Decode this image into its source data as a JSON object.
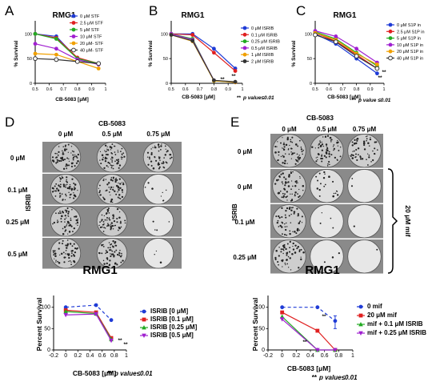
{
  "panels": [
    {
      "letter": "A"
    },
    {
      "letter": "B"
    },
    {
      "letter": "C"
    },
    {
      "letter": "D"
    },
    {
      "letter": "E"
    }
  ],
  "pvalue_note": "p value≤0.01",
  "pvalue_note_c": "p value ≤0.01",
  "pvalue_stars": "**",
  "chart_data": [
    {
      "id": "A",
      "type": "line",
      "title": "RMG1",
      "xlabel": "CB-5083 [μM]",
      "ylabel": "% Survival",
      "xlim": [
        0.5,
        1.0
      ],
      "ylim": [
        0,
        120
      ],
      "xticks": [
        0.5,
        0.6,
        0.7,
        0.8,
        0.9,
        1.0
      ],
      "yticks": [
        0,
        50,
        100
      ],
      "x": [
        0.5,
        0.65,
        0.8,
        0.95
      ],
      "series": [
        {
          "name": "0 μM STF",
          "color": "#1f3bd6",
          "marker": "circle",
          "values": [
            100,
            95,
            50,
            40
          ]
        },
        {
          "name": "2.5 μM STF",
          "color": "#e02020",
          "marker": "circle",
          "values": [
            100,
            92,
            52,
            40
          ]
        },
        {
          "name": "5 μM STF",
          "color": "#22aa22",
          "marker": "circle",
          "values": [
            100,
            90,
            50,
            40
          ]
        },
        {
          "name": "10 μM STF",
          "color": "#a020d0",
          "marker": "circle",
          "values": [
            80,
            70,
            48,
            38
          ]
        },
        {
          "name": "20 μM- STF",
          "color": "#f0a000",
          "marker": "circle",
          "values": [
            60,
            58,
            44,
            30
          ]
        },
        {
          "name": "40 μM- STF",
          "color": "#333333",
          "marker": "open-circle",
          "values": [
            50,
            48,
            44,
            40
          ]
        }
      ],
      "annotations": []
    },
    {
      "id": "B",
      "type": "line",
      "title": "RMG1",
      "xlabel": "CB-5083 [μM]",
      "ylabel": "% Survival",
      "xlim": [
        0.5,
        1.0
      ],
      "ylim": [
        0,
        120
      ],
      "xticks": [
        0.5,
        0.6,
        0.7,
        0.8,
        0.9,
        1.0
      ],
      "yticks": [
        0,
        50,
        100
      ],
      "x": [
        0.5,
        0.65,
        0.8,
        0.95
      ],
      "series": [
        {
          "name": "0 μM ISRIB",
          "color": "#1f3bd6",
          "marker": "circle",
          "values": [
            100,
            100,
            70,
            30
          ]
        },
        {
          "name": "0.1 μM ISRIB",
          "color": "#e02020",
          "marker": "circle",
          "values": [
            100,
            98,
            62,
            25
          ]
        },
        {
          "name": "0.25 μM ISRIB",
          "color": "#22aa22",
          "marker": "circle",
          "values": [
            100,
            90,
            5,
            2
          ]
        },
        {
          "name": "0.5 μM ISRIB",
          "color": "#a020d0",
          "marker": "circle",
          "values": [
            100,
            88,
            6,
            2
          ]
        },
        {
          "name": "1 μM ISRIB",
          "color": "#f0a000",
          "marker": "circle",
          "values": [
            98,
            85,
            5,
            2
          ]
        },
        {
          "name": "2 μM ISRIB",
          "color": "#333333",
          "marker": "circle",
          "values": [
            98,
            86,
            6,
            3
          ]
        }
      ],
      "annotations": [
        "**",
        "**"
      ]
    },
    {
      "id": "C",
      "type": "line",
      "title": "RMG1",
      "xlabel": "CB-5083 [μM]",
      "ylabel": "% Survival",
      "xlim": [
        0.5,
        1.0
      ],
      "ylim": [
        0,
        120
      ],
      "xticks": [
        0.5,
        0.6,
        0.7,
        0.8,
        0.9,
        1.0
      ],
      "yticks": [
        0,
        50,
        100
      ],
      "x": [
        0.5,
        0.65,
        0.8,
        0.95
      ],
      "series": [
        {
          "name": "0 μM S1P in",
          "color": "#1f3bd6",
          "marker": "circle",
          "values": [
            100,
            80,
            50,
            20
          ]
        },
        {
          "name": "2.5 μM S1P in",
          "color": "#e02020",
          "marker": "circle",
          "values": [
            102,
            85,
            58,
            30
          ]
        },
        {
          "name": "5 μM S1P in",
          "color": "#22aa22",
          "marker": "circle",
          "values": [
            104,
            90,
            62,
            35
          ]
        },
        {
          "name": "10 μM S1P in",
          "color": "#a020d0",
          "marker": "circle",
          "values": [
            106,
            95,
            70,
            42
          ]
        },
        {
          "name": "20 μM S1P in",
          "color": "#f0a000",
          "marker": "circle",
          "values": [
            102,
            88,
            60,
            38
          ]
        },
        {
          "name": "40 μM S1P in",
          "color": "#333333",
          "marker": "open-circle",
          "values": [
            98,
            84,
            55,
            30
          ]
        }
      ],
      "annotations": [
        "**",
        "**"
      ]
    },
    {
      "id": "D",
      "type": "line",
      "title": "RMG1",
      "xlabel": "CB-5083 [μM]",
      "ylabel": "Percent Survival",
      "xlim": [
        -0.2,
        1.0
      ],
      "ylim": [
        0,
        120
      ],
      "xticks": [
        -0.2,
        0.0,
        0.2,
        0.4,
        0.6,
        0.8,
        1.0
      ],
      "yticks": [
        0,
        50,
        100
      ],
      "x": [
        0.0,
        0.5,
        0.75
      ],
      "series": [
        {
          "name": "ISRIB [0 μM]",
          "color": "#1f3bd6",
          "dashed": true,
          "marker": "circle",
          "values": [
            100,
            105,
            70
          ]
        },
        {
          "name": "ISRIB [0.1 μM]",
          "color": "#e02020",
          "marker": "square",
          "values": [
            93,
            88,
            28
          ]
        },
        {
          "name": "ISRIB [0.25 μM]",
          "color": "#22aa22",
          "marker": "triangle",
          "values": [
            90,
            85,
            25
          ]
        },
        {
          "name": "ISRIB [0.5 μM]",
          "color": "#a020d0",
          "marker": "triangle-down",
          "values": [
            82,
            84,
            22
          ]
        }
      ],
      "annotations": [
        "**",
        "**"
      ]
    },
    {
      "id": "E",
      "type": "line",
      "title": "RMG1",
      "xlabel": "CB-5083 [μM]",
      "ylabel": "Percent Survival",
      "xlim": [
        -0.2,
        1.0
      ],
      "ylim": [
        0,
        120
      ],
      "xticks": [
        -0.2,
        0.0,
        0.2,
        0.4,
        0.6,
        0.8,
        1.0
      ],
      "yticks": [
        0,
        50,
        100
      ],
      "x": [
        0.0,
        0.5,
        0.75
      ],
      "series": [
        {
          "name": "0 mif",
          "color": "#1f3bd6",
          "dashed": true,
          "marker": "circle",
          "values": [
            100,
            100,
            68
          ]
        },
        {
          "name": "20 μM mif",
          "color": "#e02020",
          "marker": "square",
          "values": [
            88,
            45,
            0
          ]
        },
        {
          "name": "mif + 0.1 μM ISRIB",
          "color": "#22aa22",
          "marker": "triangle",
          "values": [
            78,
            0,
            0
          ]
        },
        {
          "name": "mif + 0.25 μM ISRIB",
          "color": "#a020d0",
          "marker": "triangle-down",
          "values": [
            72,
            0,
            0
          ]
        }
      ],
      "annotations": [
        "**",
        "**"
      ]
    }
  ],
  "plates_d": {
    "header": "CB-5083",
    "columns": [
      "0 μM",
      "0.5 μM",
      "0.75 μM"
    ],
    "row_axis": "ISRIB",
    "rows": [
      "0 μM",
      "0.1 μM",
      "0.25 μM",
      "0.5 μM"
    ],
    "density": [
      [
        1.0,
        0.95,
        0.8
      ],
      [
        0.95,
        0.9,
        0.12
      ],
      [
        0.9,
        0.85,
        0.06
      ],
      [
        0.85,
        0.82,
        0.04
      ]
    ],
    "title": "RMG1"
  },
  "plates_e": {
    "header": "CB-5083",
    "columns": [
      "0 μM",
      "0.5 μM",
      "0.75 μM"
    ],
    "row_axis": "ISRIB",
    "rows": [
      "0 μM",
      "0 μM",
      "0.1 μM",
      "0.25 μM"
    ],
    "density": [
      [
        1.0,
        0.95,
        0.75
      ],
      [
        0.9,
        0.3,
        0.03
      ],
      [
        0.8,
        0.05,
        0.02
      ],
      [
        0.75,
        0.04,
        0.02
      ]
    ],
    "bracket_label": "20 μM mif",
    "title": "RMG1"
  }
}
